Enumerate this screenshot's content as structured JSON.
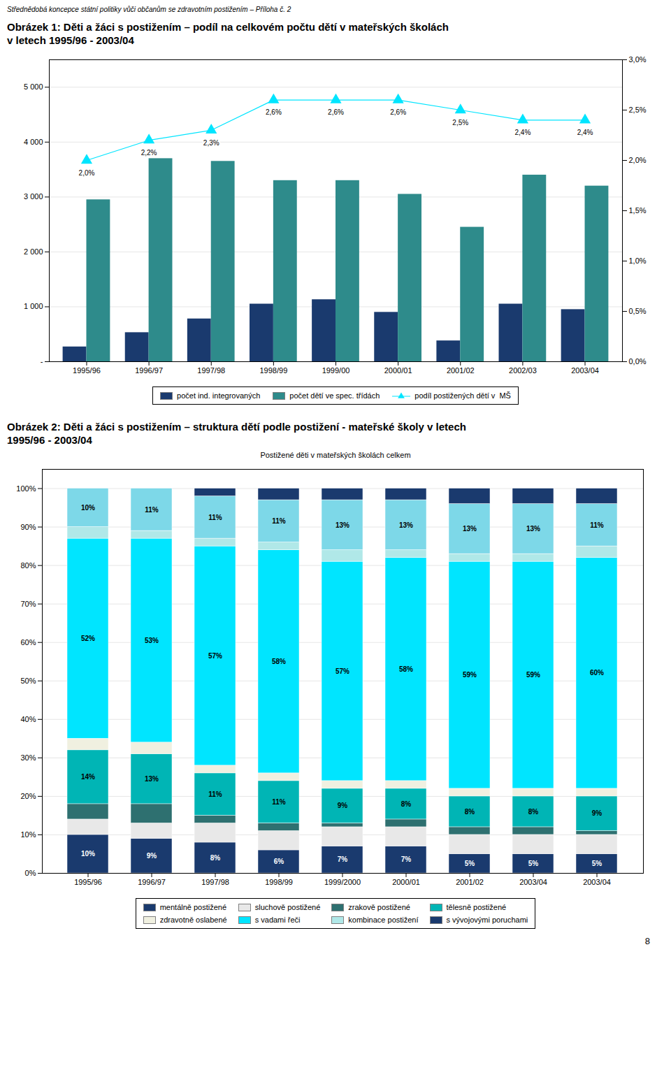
{
  "header": "Střednědobá koncepce státní politiky vůči občanům se zdravotním postižením – Příloha č. 2",
  "page_number": "8",
  "chart_data": [
    {
      "type": "bar",
      "title": "Obrázek 1: Děti a žáci s postižením – podíl na celkovém počtu dětí v mateřských školách",
      "subtitle": "v letech 1995/96 - 2003/04",
      "categories": [
        "1995/96",
        "1996/97",
        "1997/98",
        "1998/99",
        "1999/00",
        "2000/01",
        "2001/02",
        "2002/03",
        "2003/04"
      ],
      "series": [
        {
          "name": "počet ind. integrovaných",
          "color": "#1a3a6e",
          "values": [
            270,
            530,
            780,
            1050,
            1130,
            900,
            380,
            1050,
            950
          ]
        },
        {
          "name": "počet dětí ve spec. třídách",
          "color": "#2e8b8b",
          "values": [
            2950,
            3700,
            3650,
            3300,
            3300,
            3050,
            2450,
            3400,
            3200
          ]
        },
        {
          "name": "podíl postižených dětí v  MŠ",
          "type": "line",
          "axis": "y2",
          "color": "#00e5ff",
          "marker": "triangle",
          "values": [
            2.0,
            2.2,
            2.3,
            2.6,
            2.6,
            2.6,
            2.5,
            2.4,
            2.4
          ],
          "data_labels": true,
          "value_labels": [
            "2,0%",
            "2,2%",
            "2,3%",
            "2,6%",
            "2,6%",
            "2,6%",
            "2,5%",
            "2,4%",
            "2,4%"
          ]
        }
      ],
      "ylim": [
        0,
        5500
      ],
      "yticks": [
        {
          "value": 0,
          "label": "-"
        },
        {
          "value": 1000,
          "label": "1 000"
        },
        {
          "value": 2000,
          "label": "2 000"
        },
        {
          "value": 3000,
          "label": "3 000"
        },
        {
          "value": 4000,
          "label": "4 000"
        },
        {
          "value": 5000,
          "label": "5 000"
        }
      ],
      "y2lim": [
        0,
        3
      ],
      "y2ticks": [
        {
          "value": 0,
          "label": "0,0%"
        },
        {
          "value": 0.5,
          "label": "0,5%"
        },
        {
          "value": 1,
          "label": "1,0%"
        },
        {
          "value": 1.5,
          "label": "1,5%"
        },
        {
          "value": 2,
          "label": "2,0%"
        },
        {
          "value": 2.5,
          "label": "2,5%"
        },
        {
          "value": 3,
          "label": "3,0%"
        }
      ],
      "grid": true,
      "legend": "bottom"
    },
    {
      "type": "bar",
      "stacked": true,
      "title": "Obrázek 2: Děti a žáci s postižením – struktura dětí podle postižení - mateřské školy v letech",
      "subtitle": "1995/96 - 2003/04",
      "annotations": [
        "Postižené děti v mateřských školách celkem"
      ],
      "categories": [
        "1995/96",
        "1996/97",
        "1997/98",
        "1998/99",
        "1999/2000",
        "2000/01",
        "2001/02",
        "2003/04",
        "2003/04"
      ],
      "series": [
        {
          "name": "mentálně postižené",
          "color": "#1a3a6e",
          "values": [
            10,
            9,
            8,
            6,
            7,
            7,
            5,
            5,
            5
          ],
          "data_labels": true,
          "value_labels": [
            "10%",
            "9%",
            "8%",
            "6%",
            "7%",
            "7%",
            "5%",
            "5%",
            "5%"
          ]
        },
        {
          "name": "sluchově postižené",
          "color": "#e8e8e8",
          "values": [
            4,
            4,
            5,
            5,
            5,
            5,
            5,
            5,
            5
          ]
        },
        {
          "name": "zrakově postižené",
          "color": "#2e7070",
          "values": [
            4,
            5,
            2,
            2,
            1,
            2,
            2,
            2,
            1
          ]
        },
        {
          "name": "tělesně postižené",
          "color": "#00b5b5",
          "values": [
            14,
            13,
            11,
            11,
            9,
            8,
            8,
            8,
            9
          ],
          "data_labels": true,
          "value_labels": [
            "14%",
            "13%",
            "11%",
            "11%",
            "9%",
            "8%",
            "8%",
            "8%",
            "9%"
          ]
        },
        {
          "name": "zdravotně oslabené",
          "color": "#f0f0e0",
          "values": [
            3,
            3,
            2,
            2,
            2,
            2,
            2,
            2,
            2
          ]
        },
        {
          "name": "s vadami řeči",
          "color": "#00e5ff",
          "values": [
            52,
            53,
            57,
            58,
            57,
            58,
            59,
            59,
            60
          ],
          "data_labels": true,
          "value_labels": [
            "52%",
            "53%",
            "57%",
            "58%",
            "57%",
            "58%",
            "59%",
            "59%",
            "60%"
          ]
        },
        {
          "name": "kombinace postižení",
          "color": "#b0e8e8",
          "values": [
            3,
            2,
            2,
            2,
            3,
            2,
            2,
            2,
            3
          ]
        },
        {
          "color": "#7dd8e8",
          "values": [
            10,
            11,
            11,
            11,
            13,
            13,
            13,
            13,
            11
          ],
          "data_labels": true,
          "value_labels": [
            "10%",
            "11%",
            "11%",
            "11%",
            "13%",
            "13%",
            "13%",
            "13%",
            "11%"
          ]
        },
        {
          "name": "s vývojovými poruchami",
          "color": "#1a3a6e",
          "values": [
            0,
            0,
            2,
            3,
            3,
            3,
            4,
            4,
            4
          ]
        }
      ],
      "ylim": [
        0,
        105
      ],
      "yticks": [
        {
          "value": 0,
          "label": "0%"
        },
        {
          "value": 10,
          "label": "10%"
        },
        {
          "value": 20,
          "label": "20%"
        },
        {
          "value": 30,
          "label": "30%"
        },
        {
          "value": 40,
          "label": "40%"
        },
        {
          "value": 50,
          "label": "50%"
        },
        {
          "value": 60,
          "label": "60%"
        },
        {
          "value": 70,
          "label": "70%"
        },
        {
          "value": 80,
          "label": "80%"
        },
        {
          "value": 90,
          "label": "90%"
        },
        {
          "value": 100,
          "label": "100%"
        }
      ],
      "grid": true,
      "legend": "bottom"
    }
  ]
}
